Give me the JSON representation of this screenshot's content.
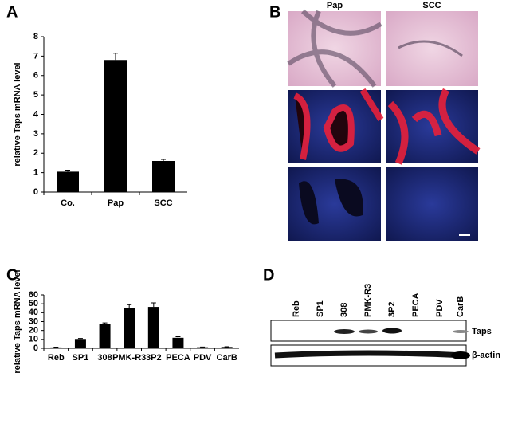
{
  "panel_labels": [
    "A",
    "B",
    "C",
    "D"
  ],
  "micrograph": {
    "columns": [
      "Pap",
      "SCC"
    ]
  },
  "blot": {
    "lanes": [
      "Reb",
      "SP1",
      "308",
      "PMK-R3",
      "3P2",
      "PECA",
      "PDV",
      "CarB"
    ],
    "rows": [
      "Taps",
      "β-actin"
    ]
  },
  "chart_data": [
    {
      "type": "bar",
      "y_label": "relative Taps mRNA level",
      "categories": [
        "Co.",
        "Pap",
        "SCC"
      ],
      "values": [
        1.05,
        6.8,
        1.6
      ],
      "errors": [
        0.08,
        0.35,
        0.08
      ],
      "color": "#000000",
      "ylim": [
        0,
        8
      ],
      "yticks": [
        0,
        1,
        2,
        3,
        4,
        5,
        6,
        7,
        8
      ]
    },
    {
      "type": "bar",
      "y_label": "relative Taps mRNA level",
      "categories": [
        "Reb",
        "SP1",
        "308",
        "PMK-R3",
        "3P2",
        "PECA",
        "PDV",
        "CarB"
      ],
      "values": [
        1,
        10.5,
        27.5,
        45,
        46.5,
        11.8,
        1.2,
        1.5
      ],
      "errors": [
        0.3,
        0.6,
        1,
        4,
        4.5,
        1.2,
        0.2,
        0.3
      ],
      "color": "#000000",
      "ylim": [
        0,
        60
      ],
      "yticks": [
        0,
        10,
        20,
        30,
        40,
        50,
        60
      ]
    }
  ]
}
